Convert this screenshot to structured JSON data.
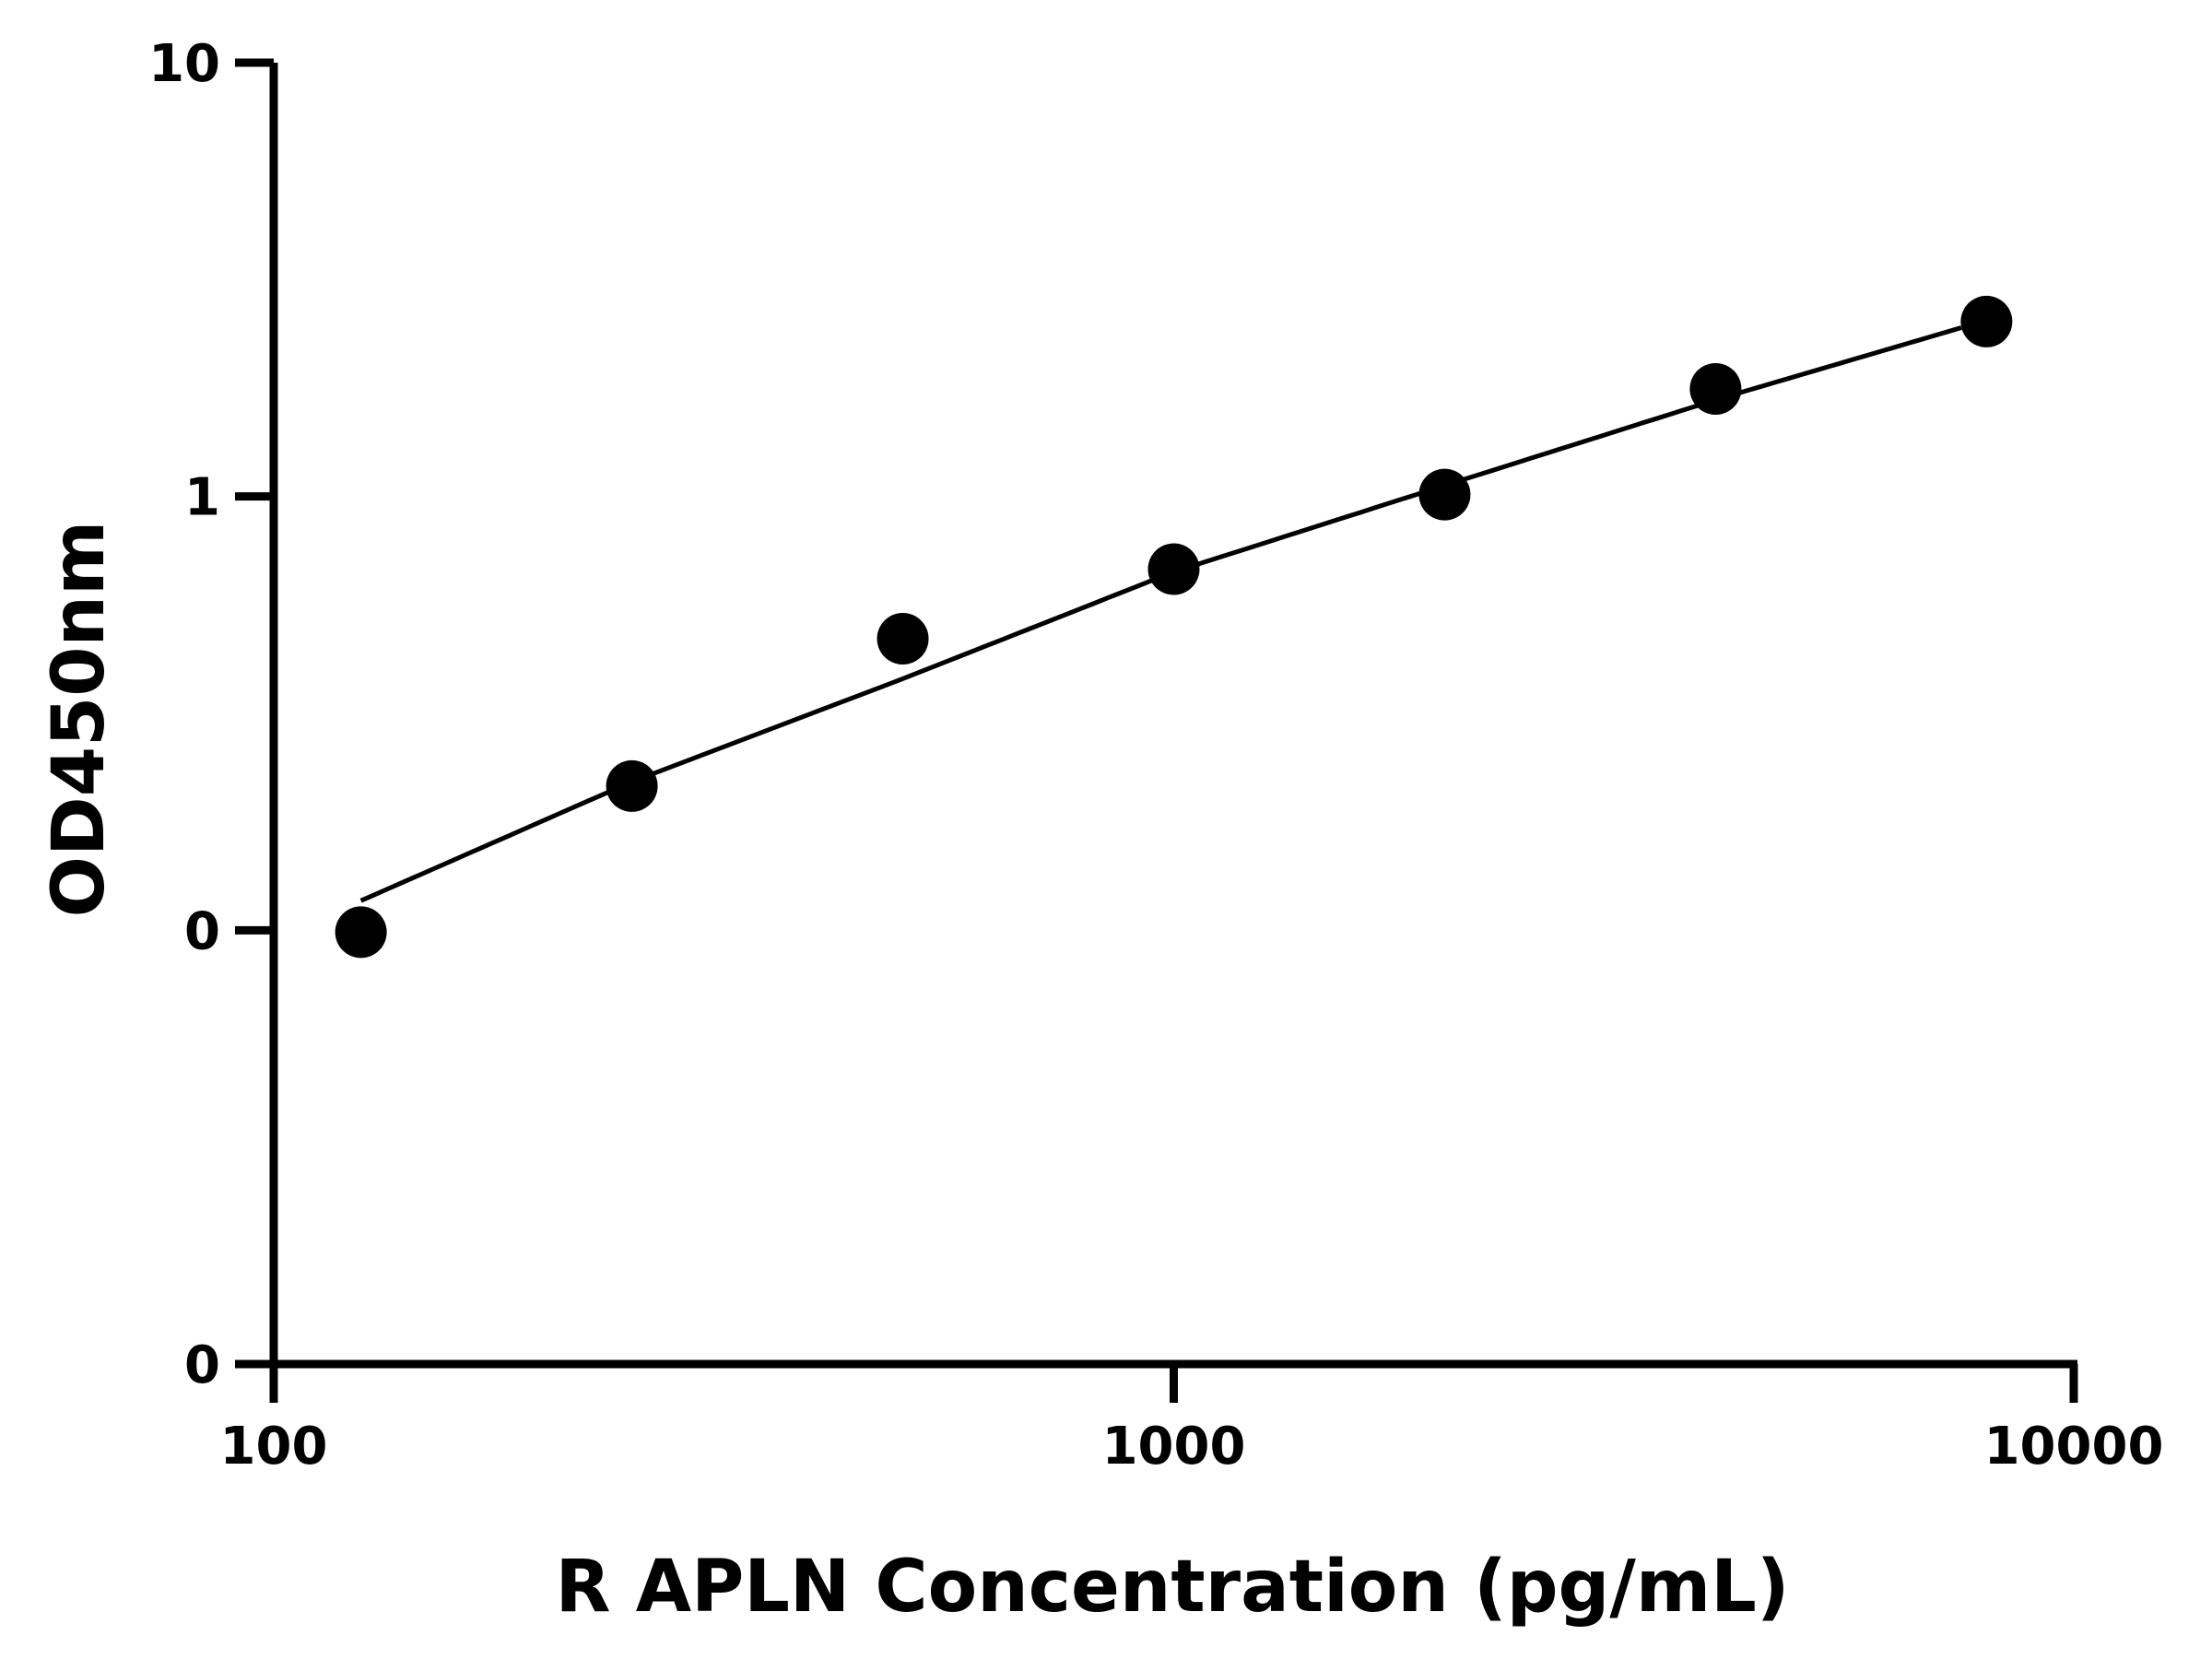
{
  "chart_data": {
    "type": "scatter",
    "xlabel": "R APLN Concentration (pg/mL)",
    "ylabel": "OD450nm",
    "xscale": "log",
    "yscale": "log",
    "xlim": [
      100,
      10000
    ],
    "ylim": [
      0.01,
      10
    ],
    "xticks": [
      100,
      1000,
      10000
    ],
    "xtick_labels": [
      "100",
      "1000",
      "10000"
    ],
    "yticks": [
      0.01,
      0.1,
      1,
      10
    ],
    "ytick_labels": [
      "0",
      "0",
      "1",
      "10"
    ],
    "grid": false,
    "series": [
      {
        "points": [
          {
            "x": 125,
            "y": 0.099
          },
          {
            "x": 250,
            "y": 0.215
          },
          {
            "x": 500,
            "y": 0.47
          },
          {
            "x": 1000,
            "y": 0.68
          },
          {
            "x": 2000,
            "y": 1.01
          },
          {
            "x": 4000,
            "y": 1.77
          },
          {
            "x": 8000,
            "y": 2.53
          }
        ],
        "fit_curve": [
          {
            "x": 125,
            "y": 0.117
          },
          {
            "x": 250,
            "y": 0.22
          },
          {
            "x": 500,
            "y": 0.38
          },
          {
            "x": 1000,
            "y": 0.67
          },
          {
            "x": 2000,
            "y": 1.06
          },
          {
            "x": 4000,
            "y": 1.67
          },
          {
            "x": 7500,
            "y": 2.45
          }
        ]
      }
    ]
  }
}
